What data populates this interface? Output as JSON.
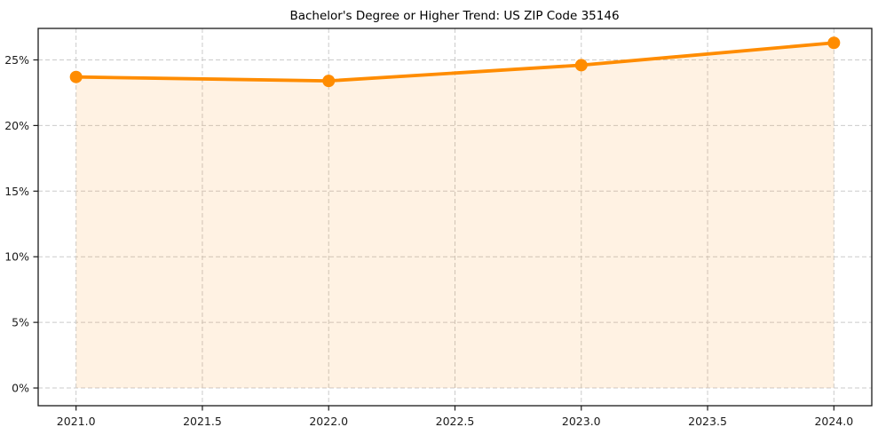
{
  "page": {
    "background": "#ffffff"
  },
  "chart_data": {
    "type": "line",
    "title": "Bachelor's Degree or Higher Trend: US ZIP Code 35146",
    "x": [
      2021,
      2022,
      2023,
      2024
    ],
    "series": [
      {
        "name": "Bachelor's degree or higher",
        "unit": "%",
        "values": [
          23.7,
          23.4,
          24.6,
          26.3
        ]
      }
    ],
    "area_fill_to_zero": true,
    "markers": "circle",
    "xlabel": "",
    "ylabel": "",
    "xlim": [
      2020.85,
      2024.15
    ],
    "ylim": [
      -1.35,
      27.4
    ],
    "xticks": {
      "values": [
        2021.0,
        2021.5,
        2022.0,
        2022.5,
        2023.0,
        2023.5,
        2024.0
      ],
      "labels": [
        "2021.0",
        "2021.5",
        "2022.0",
        "2022.5",
        "2023.0",
        "2023.5",
        "2024.0"
      ]
    },
    "yticks": {
      "values": [
        0,
        5,
        10,
        15,
        20,
        25
      ],
      "labels": [
        "0%",
        "5%",
        "10%",
        "15%",
        "20%",
        "25%"
      ]
    },
    "grid": {
      "visible": true,
      "style": "dashed"
    },
    "legend": {
      "visible": false
    },
    "colors": {
      "line": "#ff8c00",
      "marker": "#ff8c00",
      "fill": "#ff8c00",
      "fill_opacity": 0.11,
      "grid": "#cbcbcb",
      "axis": "#1a1a1a",
      "tick_text": "#1a1a1a",
      "title_text": "#000000",
      "background": "#ffffff"
    }
  }
}
